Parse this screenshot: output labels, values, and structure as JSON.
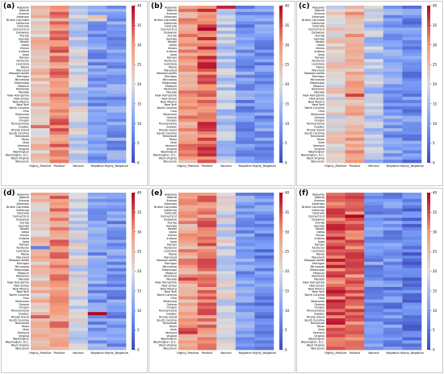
{
  "chart_data": {
    "type": "heatmap",
    "colormap": "coolwarm",
    "vmin": 0,
    "vmax": 40,
    "colorbar_ticks": [
      0,
      5,
      10,
      15,
      20,
      25,
      30,
      35,
      40
    ],
    "columns": [
      "Highly_Positive",
      "Positive",
      "Neutral",
      "Negative",
      "Highly_Negative"
    ],
    "rows": [
      "Alabama",
      "Alberta",
      "Arizona",
      "Arkansas",
      "British Columbia",
      "California",
      "Colorado",
      "Connecticut",
      "Delaware",
      "Florida",
      "Georgia",
      "Hawaii",
      "Idaho",
      "Illinois",
      "Indiana",
      "Iowa",
      "Kansas",
      "Kentucky",
      "Louisiana",
      "Maine",
      "Maryland",
      "Massachusetts",
      "Michigan",
      "Minnesota",
      "Mississippi",
      "Missouri",
      "Nebraska",
      "Nevada",
      "New Hampshire",
      "New Jersey",
      "New Mexico",
      "New York",
      "North Carolina",
      "Ohio",
      "Oklahoma",
      "Ontario",
      "Oregon",
      "Pennsylvania",
      "Quebec",
      "Rhode Island",
      "South Carolina",
      "Tennessee",
      "Texas",
      "Utah",
      "Vermont",
      "Virginia",
      "Washington",
      "Washington, D.C.",
      "West Virginia",
      "Wisconsin"
    ],
    "panels": [
      {
        "label": "(a)",
        "column_means": [
          24,
          31,
          18,
          10,
          10
        ],
        "highlights": [
          {
            "row": "Arkansas",
            "column": "Negative",
            "value": 24
          },
          {
            "row": "British Columbia",
            "column": "Negative",
            "value": 22
          },
          {
            "row": "Quebec",
            "column": "Highly_Positive",
            "value": 33
          }
        ]
      },
      {
        "label": "(b)",
        "column_means": [
          29,
          34,
          16,
          9,
          9
        ],
        "highlights": [
          {
            "row": "Alabama",
            "column": "Neutral",
            "value": 38
          },
          {
            "row": "Connecticut",
            "column": "Positive",
            "value": 40
          },
          {
            "row": "Kansas",
            "column": "Positive",
            "value": 38
          },
          {
            "row": "Pennsylvania",
            "column": "Positive",
            "value": 38
          }
        ]
      },
      {
        "label": "(c)",
        "column_means": [
          21,
          27,
          16,
          10,
          8
        ],
        "highlights": [
          {
            "row": "New Hampshire",
            "column": "Positive",
            "value": 36
          }
        ]
      },
      {
        "label": "(d)",
        "column_means": [
          24,
          30,
          19,
          10,
          9
        ],
        "highlights": [
          {
            "row": "Kentucky",
            "column": "Highly_Positive",
            "value": 6
          },
          {
            "row": "Quebec",
            "column": "Negative",
            "value": 40
          },
          {
            "row": "Rhode Island",
            "column": "Highly_Positive",
            "value": 34
          }
        ]
      },
      {
        "label": "(e)",
        "column_means": [
          28,
          31,
          19,
          10,
          8
        ],
        "highlights": [
          {
            "row": "Nevada",
            "column": "Highly_Positive",
            "value": 36
          },
          {
            "row": "Utah",
            "column": "Highly_Positive",
            "value": 35
          },
          {
            "row": "Vermont",
            "column": "Highly_Positive",
            "value": 37
          }
        ]
      },
      {
        "label": "(f)",
        "column_means": [
          34,
          32,
          9,
          8,
          6
        ],
        "highlights": [
          {
            "row": "Connecticut",
            "column": "Positive",
            "value": 40
          },
          {
            "row": "New York",
            "column": "Highly_Positive",
            "value": 39
          },
          {
            "row": "Tennessee",
            "column": "Highly_Positive",
            "value": 39
          }
        ]
      }
    ]
  }
}
